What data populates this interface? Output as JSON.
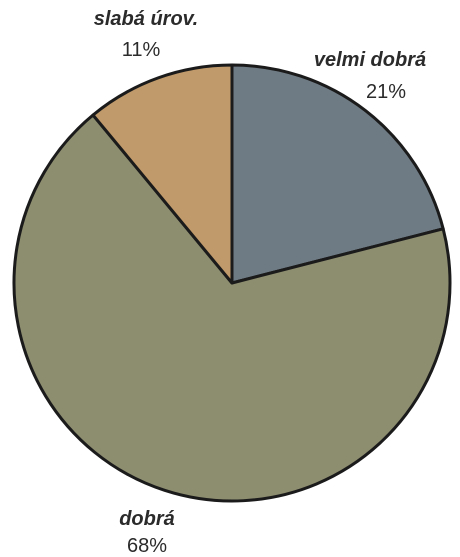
{
  "chart_data": {
    "type": "pie",
    "title": "",
    "slices": [
      {
        "label": "velmi dobrá",
        "value": 21,
        "value_label": "21%",
        "color": "#6f7b84"
      },
      {
        "label": "dobrá",
        "value": 68,
        "value_label": "68%",
        "color": "#8d8d70"
      },
      {
        "label": "slabá úrov.",
        "value": 11,
        "value_label": "11%",
        "color": "#c09a6a"
      }
    ],
    "start": "12 o'clock",
    "direction": "clockwise",
    "outline_color": "#1b1b1b"
  }
}
